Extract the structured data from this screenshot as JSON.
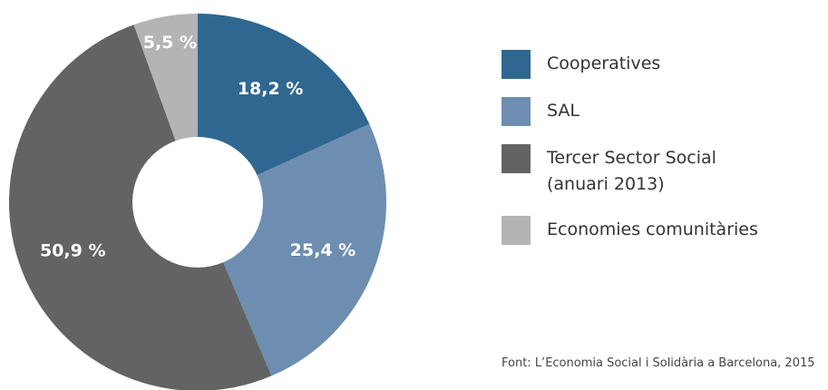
{
  "chart_data": {
    "type": "donut",
    "categories": [
      "Cooperatives",
      "SAL",
      "Tercer Sector Social (anuari 2013)",
      "Economies comunitàries"
    ],
    "values": [
      18.2,
      25.4,
      50.9,
      5.5
    ],
    "value_labels": [
      "18,2 %",
      "25,4 %",
      "50,9 %",
      "5,5 %"
    ],
    "colors": [
      "#2f6790",
      "#6d8eb0",
      "#636363",
      "#b4b4b4"
    ],
    "legend": "right",
    "source": "Font: L’Economia Social i Solidària a Barcelona, 2015"
  }
}
